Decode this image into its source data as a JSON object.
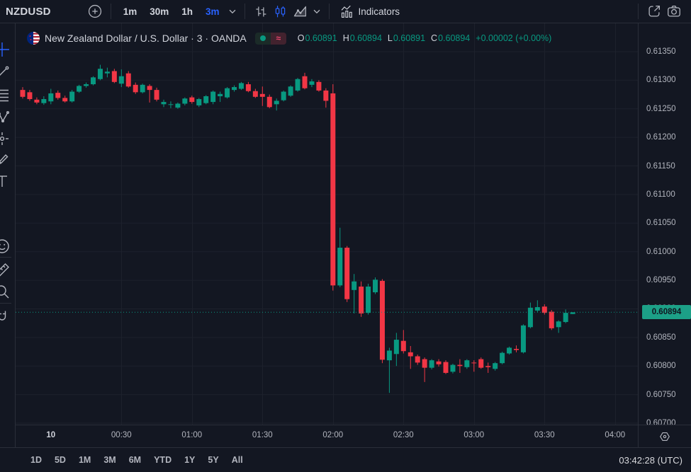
{
  "toolbar": {
    "symbol": "NZDUSD",
    "intervals": [
      "1m",
      "30m",
      "1h",
      "3m"
    ],
    "active_interval": "3m",
    "indicators_label": "Indicators",
    "icons": [
      "plus-icon",
      "chevron-down-icon",
      "bar-chart-type-icon",
      "candlestick-chart-type-icon",
      "area-chart-type-icon",
      "indicators-icon",
      "share-icon",
      "camera-icon"
    ]
  },
  "sidebar": {
    "items": [
      {
        "tool": "crosshair",
        "icon": "crosshair-icon",
        "active": true
      },
      {
        "tool": "trend-line",
        "icon": "trend-line-icon"
      },
      {
        "tool": "fib-retracement",
        "icon": "fib-retracement-icon"
      },
      {
        "tool": "xabcd-pattern",
        "icon": "pattern-icon"
      },
      {
        "tool": "long-position",
        "icon": "position-icon"
      },
      {
        "tool": "brush",
        "icon": "brush-icon"
      },
      {
        "tool": "text",
        "icon": "text-icon"
      },
      {
        "tool": "emoji",
        "icon": "emoji-icon"
      },
      {
        "sep": true
      },
      {
        "tool": "measure",
        "icon": "ruler-icon"
      },
      {
        "tool": "zoom",
        "icon": "magnifier-icon"
      },
      {
        "sep": true
      },
      {
        "tool": "magnet",
        "icon": "magnet-icon"
      }
    ]
  },
  "legend": {
    "flag_icon": "nzd-usd-flag-icon",
    "title": "New Zealand Dollar / U.S. Dollar · 3 · OANDA",
    "delayed_glyph": "≈",
    "ohlc": {
      "open_label": "O",
      "open": "0.60891",
      "high_label": "H",
      "high": "0.60894",
      "low_label": "L",
      "low": "0.60891",
      "close_label": "C",
      "close": "0.60894",
      "change": "+0.00002 (+0.00%)"
    }
  },
  "price_axis": {
    "labels": [
      "0.61350",
      "0.61300",
      "0.61250",
      "0.61200",
      "0.61150",
      "0.61100",
      "0.61050",
      "0.61000",
      "0.60950",
      "0.60900",
      "0.60850",
      "0.60800",
      "0.60750",
      "0.60700"
    ],
    "last_price_label": "0.60894"
  },
  "time_axis": {
    "labels": [
      {
        "text": "10",
        "index": 4,
        "major": true,
        "grid": false
      },
      {
        "text": "00:30",
        "index": 14
      },
      {
        "text": "01:00",
        "index": 24
      },
      {
        "text": "01:30",
        "index": 34
      },
      {
        "text": "02:00",
        "index": 44
      },
      {
        "text": "02:30",
        "index": 54
      },
      {
        "text": "03:00",
        "index": 64
      },
      {
        "text": "03:30",
        "index": 74
      },
      {
        "text": "04:00",
        "index": 84
      }
    ]
  },
  "range_bar": {
    "ranges": [
      "1D",
      "5D",
      "1M",
      "3M",
      "6M",
      "YTD",
      "1Y",
      "5Y",
      "All"
    ],
    "clock": "03:42:28 (UTC)"
  },
  "chart_data": {
    "type": "candlestick",
    "title": "New Zealand Dollar / U.S. Dollar",
    "exchange": "OANDA",
    "symbol": "NZDUSD",
    "interval": "3",
    "interval_label": "3m",
    "grid": true,
    "ylim": [
      0.607,
      0.6135
    ],
    "grid_step": 0.0005,
    "last_price": 0.60894,
    "first_candle_time": "23:48",
    "minutes_per_candle": 3,
    "colors": {
      "up": "#089981",
      "down": "#f23645",
      "accent": "#2962ff",
      "grid": "#1d212c",
      "axis_text": "#b2b5be"
    },
    "candles": [
      [
        0.61283,
        0.61288,
        0.61268,
        0.61271
      ],
      [
        0.61279,
        0.61283,
        0.61264,
        0.61267
      ],
      [
        0.61266,
        0.6127,
        0.61258,
        0.61261
      ],
      [
        0.6126,
        0.61272,
        0.61257,
        0.61267
      ],
      [
        0.61263,
        0.61285,
        0.61258,
        0.61277
      ],
      [
        0.61278,
        0.61282,
        0.61266,
        0.61269
      ],
      [
        0.61269,
        0.61273,
        0.61261,
        0.61263
      ],
      [
        0.61263,
        0.61283,
        0.61261,
        0.6128
      ],
      [
        0.6128,
        0.61292,
        0.61278,
        0.6129
      ],
      [
        0.6129,
        0.61296,
        0.61287,
        0.61293
      ],
      [
        0.61293,
        0.61307,
        0.61291,
        0.61305
      ],
      [
        0.61302,
        0.61327,
        0.613,
        0.6132
      ],
      [
        0.61312,
        0.61322,
        0.61305,
        0.61315
      ],
      [
        0.61316,
        0.6132,
        0.61295,
        0.61297
      ],
      [
        0.61294,
        0.61319,
        0.61288,
        0.61307
      ],
      [
        0.61312,
        0.61316,
        0.61287,
        0.61289
      ],
      [
        0.61292,
        0.61296,
        0.61276,
        0.61279
      ],
      [
        0.61279,
        0.61294,
        0.61277,
        0.61292
      ],
      [
        0.6129,
        0.61293,
        0.61261,
        0.61283
      ],
      [
        0.61283,
        0.61287,
        0.61263,
        0.61266
      ],
      [
        0.61258,
        0.61266,
        0.61253,
        0.61262
      ],
      [
        0.61257,
        0.61263,
        0.61251,
        0.61258
      ],
      [
        0.61252,
        0.61261,
        0.6125,
        0.61259
      ],
      [
        0.61259,
        0.6127,
        0.61256,
        0.61268
      ],
      [
        0.6127,
        0.61273,
        0.61259,
        0.61262
      ],
      [
        0.61256,
        0.61269,
        0.61253,
        0.61267
      ],
      [
        0.6126,
        0.61274,
        0.61258,
        0.61272
      ],
      [
        0.61262,
        0.61282,
        0.61258,
        0.6128
      ],
      [
        0.61272,
        0.6128,
        0.61262,
        0.61276
      ],
      [
        0.6127,
        0.61288,
        0.61268,
        0.61286
      ],
      [
        0.61283,
        0.61291,
        0.6128,
        0.61288
      ],
      [
        0.61285,
        0.61297,
        0.61283,
        0.61295
      ],
      [
        0.61293,
        0.61297,
        0.61279,
        0.61281
      ],
      [
        0.61281,
        0.61285,
        0.61269,
        0.61271
      ],
      [
        0.61276,
        0.61289,
        0.61255,
        0.61271
      ],
      [
        0.61271,
        0.61275,
        0.61251,
        0.61253
      ],
      [
        0.61258,
        0.61268,
        0.61247,
        0.61264
      ],
      [
        0.61265,
        0.61282,
        0.61263,
        0.6128
      ],
      [
        0.61273,
        0.61291,
        0.61271,
        0.61289
      ],
      [
        0.61282,
        0.61304,
        0.6128,
        0.61302
      ],
      [
        0.61307,
        0.61313,
        0.61284,
        0.61286
      ],
      [
        0.61292,
        0.61302,
        0.61288,
        0.61298
      ],
      [
        0.61297,
        0.613,
        0.6128,
        0.61282
      ],
      [
        0.61282,
        0.61286,
        0.61252,
        0.61264
      ],
      [
        0.61277,
        0.61293,
        0.60932,
        0.60941
      ],
      [
        0.60941,
        0.61042,
        0.60938,
        0.61007
      ],
      [
        0.61007,
        0.6101,
        0.60912,
        0.60917
      ],
      [
        0.60933,
        0.60961,
        0.60892,
        0.60948
      ],
      [
        0.60939,
        0.60948,
        0.60886,
        0.60892
      ],
      [
        0.60893,
        0.60944,
        0.6089,
        0.60939
      ],
      [
        0.60929,
        0.60955,
        0.60926,
        0.60951
      ],
      [
        0.60949,
        0.60952,
        0.60805,
        0.60811
      ],
      [
        0.6081,
        0.60832,
        0.60753,
        0.60827
      ],
      [
        0.60821,
        0.60858,
        0.608,
        0.60846
      ],
      [
        0.60844,
        0.60863,
        0.60822,
        0.60826
      ],
      [
        0.60824,
        0.60835,
        0.60795,
        0.60817
      ],
      [
        0.60817,
        0.6082,
        0.60802,
        0.60806
      ],
      [
        0.60812,
        0.60815,
        0.60772,
        0.60797
      ],
      [
        0.60797,
        0.60812,
        0.60794,
        0.6081
      ],
      [
        0.60808,
        0.60812,
        0.60799,
        0.60803
      ],
      [
        0.60807,
        0.6081,
        0.60786,
        0.60788
      ],
      [
        0.6079,
        0.60804,
        0.60787,
        0.60802
      ],
      [
        0.60802,
        0.60812,
        0.60788,
        0.608
      ],
      [
        0.60798,
        0.60812,
        0.60795,
        0.6081
      ],
      [
        0.60806,
        0.6081,
        0.6079,
        0.60805
      ],
      [
        0.60812,
        0.60815,
        0.60795,
        0.60797
      ],
      [
        0.608,
        0.60806,
        0.60788,
        0.60798
      ],
      [
        0.60795,
        0.60807,
        0.60792,
        0.60805
      ],
      [
        0.60805,
        0.60825,
        0.60803,
        0.60823
      ],
      [
        0.60822,
        0.60834,
        0.6082,
        0.60832
      ],
      [
        0.6083,
        0.60836,
        0.60824,
        0.60828
      ],
      [
        0.60824,
        0.60873,
        0.60822,
        0.60871
      ],
      [
        0.60868,
        0.60911,
        0.60866,
        0.60902
      ],
      [
        0.60897,
        0.60915,
        0.60894,
        0.60903
      ],
      [
        0.60904,
        0.60908,
        0.6089,
        0.60893
      ],
      [
        0.60895,
        0.60898,
        0.60863,
        0.60866
      ],
      [
        0.60868,
        0.6088,
        0.60858,
        0.60878
      ],
      [
        0.60877,
        0.60899,
        0.60875,
        0.60893
      ],
      [
        0.60891,
        0.60894,
        0.60891,
        0.60894
      ]
    ]
  }
}
